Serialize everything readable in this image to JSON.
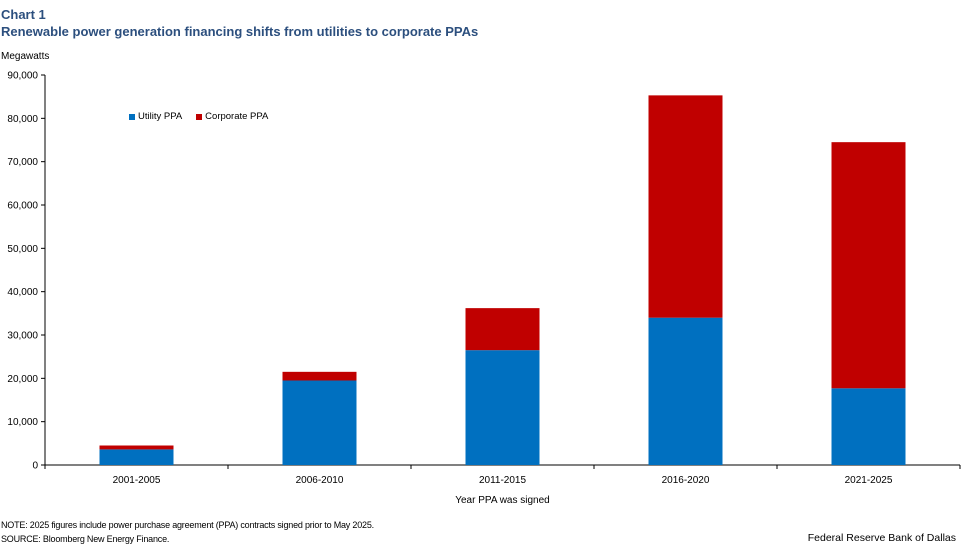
{
  "header": {
    "chart_label": "Chart 1",
    "title": "Renewable power generation financing shifts from utilities to corporate PPAs",
    "unit": "Megawatts"
  },
  "footer": {
    "note": "NOTE: 2025 figures include power purchase agreement (PPA) contracts signed prior to May 2025.",
    "source": "SOURCE: Bloomberg New Energy Finance.",
    "credit": "Federal Reserve Bank of Dallas"
  },
  "chart_data": {
    "type": "bar",
    "stacked": true,
    "title": "Renewable power generation financing shifts from utilities to corporate PPAs",
    "xlabel": "Year PPA was signed",
    "ylabel": "Megawatts",
    "ylim": [
      0,
      90000
    ],
    "yticks": [
      0,
      10000,
      20000,
      30000,
      40000,
      50000,
      60000,
      70000,
      80000,
      90000
    ],
    "ytick_labels": [
      "0",
      "10,000",
      "20,000",
      "30,000",
      "40,000",
      "50,000",
      "60,000",
      "70,000",
      "80,000",
      "90,000"
    ],
    "categories": [
      "2001-2005",
      "2006-2010",
      "2011-2015",
      "2016-2020",
      "2021-2025"
    ],
    "series": [
      {
        "name": "Utility PPA",
        "color": "#0070c0",
        "values": [
          3600,
          19500,
          26500,
          34000,
          17700
        ]
      },
      {
        "name": "Corporate PPA",
        "color": "#c00000",
        "values": [
          900,
          2000,
          9700,
          51300,
          56800
        ]
      }
    ],
    "legend_position": "top-left",
    "grid": false
  }
}
